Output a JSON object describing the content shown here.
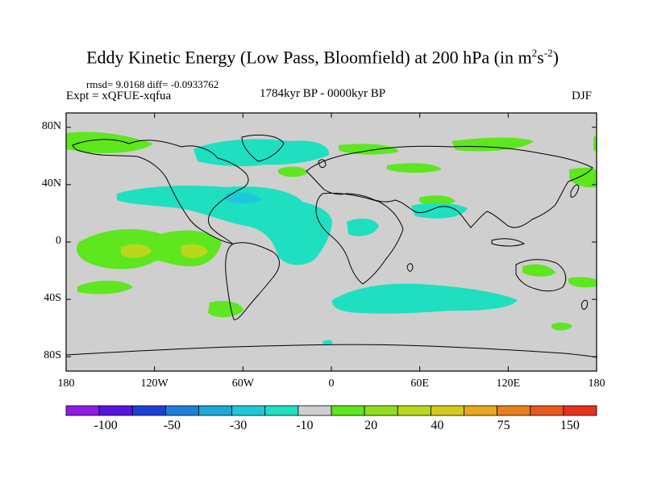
{
  "title_main": "Eddy Kinetic Energy (Low Pass, Bloomfield) at 200 hPa (in m",
  "title_exp1": "2",
  "title_mid": "s",
  "title_exp2": "-2",
  "title_end": ")",
  "stats_text": "rmsd= 9.0168 diff= -0.0933762",
  "expt_text": "Expt = xQFUE-xqfua",
  "period_text": "1784kyr BP - 0000kyr BP",
  "season_text": "DJF",
  "chart_data": {
    "type": "map",
    "x_ticks": [
      {
        "value": -180,
        "label": "180"
      },
      {
        "value": -120,
        "label": "120W"
      },
      {
        "value": -60,
        "label": "60W"
      },
      {
        "value": 0,
        "label": "0"
      },
      {
        "value": 60,
        "label": "60E"
      },
      {
        "value": 120,
        "label": "120E"
      },
      {
        "value": 180,
        "label": "180"
      }
    ],
    "y_ticks": [
      {
        "value": 80,
        "label": "80N"
      },
      {
        "value": 40,
        "label": "40N"
      },
      {
        "value": 0,
        "label": "0"
      },
      {
        "value": -40,
        "label": "40S"
      },
      {
        "value": -80,
        "label": "80S"
      }
    ],
    "xlim": [
      -180,
      180
    ],
    "ylim": [
      -90,
      90
    ],
    "colorbar": {
      "colors": [
        "#8c1ce6",
        "#5a14e0",
        "#1e3fd8",
        "#1e7fd8",
        "#1ea8d8",
        "#1ec8d8",
        "#1ee0c0",
        "#cfcfcf",
        "#5ee61e",
        "#8fe01e",
        "#b8d81e",
        "#d8c81e",
        "#e8a81e",
        "#e8801e",
        "#e8581e",
        "#e8301e"
      ],
      "labels": [
        {
          "value": "-100",
          "boundary": 2
        },
        {
          "value": "-50",
          "boundary": 4
        },
        {
          "value": "-30",
          "boundary": 6
        },
        {
          "value": "-10",
          "boundary": 8
        },
        {
          "value": "20",
          "boundary": 10
        },
        {
          "value": "40",
          "boundary": 12
        },
        {
          "value": "75",
          "boundary": 14
        },
        {
          "value": "150",
          "boundary": 16
        }
      ]
    }
  }
}
